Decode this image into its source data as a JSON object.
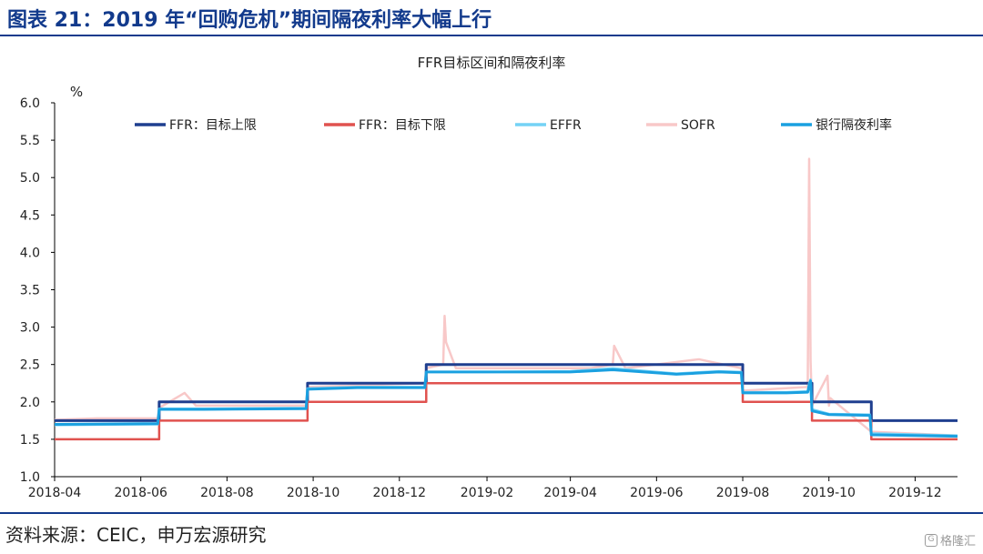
{
  "figure": {
    "title": "图表 21：2019 年“回购危机”期间隔夜利率大幅上行",
    "source": "资料来源：CEIC，申万宏源研究",
    "watermark": "格隆汇",
    "watermark_icon": "g-logo-icon"
  },
  "chart_data": {
    "type": "line",
    "title": "FFR目标区间和隔夜利率",
    "ylabel": "%",
    "ylim": [
      1.0,
      6.0
    ],
    "yticks": [
      "1.0",
      "1.5",
      "2.0",
      "2.5",
      "3.0",
      "3.5",
      "4.0",
      "4.5",
      "5.0",
      "5.5",
      "6.0"
    ],
    "xlim": [
      "2018-04-01",
      "2019-12-31"
    ],
    "xticks": [
      "2018-04",
      "2018-06",
      "2018-08",
      "2018-10",
      "2018-12",
      "2019-02",
      "2019-04",
      "2019-06",
      "2019-08",
      "2019-10",
      "2019-12"
    ],
    "grid": false,
    "legend_position": "top",
    "series": [
      {
        "name": "FFR：目标上限",
        "color": "#1f3f8f",
        "style": "step",
        "x": [
          "2018-04-01",
          "2018-06-14",
          "2018-09-27",
          "2018-12-20",
          "2019-08-01",
          "2019-09-19",
          "2019-10-31",
          "2019-12-31"
        ],
        "values": [
          1.75,
          2.0,
          2.25,
          2.5,
          2.25,
          2.0,
          1.75,
          1.75
        ]
      },
      {
        "name": "FFR：目标下限",
        "color": "#e0524f",
        "style": "step",
        "x": [
          "2018-04-01",
          "2018-06-14",
          "2018-09-27",
          "2018-12-20",
          "2019-08-01",
          "2019-09-19",
          "2019-10-31",
          "2019-12-31"
        ],
        "values": [
          1.5,
          1.75,
          2.0,
          2.25,
          2.0,
          1.75,
          1.5,
          1.5
        ]
      },
      {
        "name": "EFFR",
        "color": "#74d2f5",
        "style": "line",
        "x": [
          "2018-04-01",
          "2018-06-13",
          "2018-06-14",
          "2018-07-15",
          "2018-09-26",
          "2018-09-27",
          "2018-11-01",
          "2018-12-19",
          "2018-12-20",
          "2019-02-01",
          "2019-04-01",
          "2019-05-01",
          "2019-06-15",
          "2019-07-15",
          "2019-07-31",
          "2019-08-01",
          "2019-09-01",
          "2019-09-16",
          "2019-09-17",
          "2019-09-18",
          "2019-09-19",
          "2019-10-01",
          "2019-10-30",
          "2019-10-31",
          "2019-12-31"
        ],
        "values": [
          1.69,
          1.7,
          1.91,
          1.91,
          1.92,
          2.18,
          2.2,
          2.2,
          2.4,
          2.4,
          2.41,
          2.45,
          2.38,
          2.41,
          2.4,
          2.13,
          2.13,
          2.14,
          2.25,
          2.3,
          1.9,
          1.84,
          1.83,
          1.58,
          1.55
        ]
      },
      {
        "name": "SOFR",
        "color": "#f8c8c8",
        "style": "line",
        "x": [
          "2018-04-01",
          "2018-05-01",
          "2018-06-13",
          "2018-06-14",
          "2018-07-02",
          "2018-07-10",
          "2018-09-26",
          "2018-09-27",
          "2018-12-19",
          "2018-12-20",
          "2019-01-01",
          "2019-01-02",
          "2019-01-03",
          "2019-01-10",
          "2019-04-15",
          "2019-05-01",
          "2019-05-02",
          "2019-05-10",
          "2019-07-01",
          "2019-07-31",
          "2019-08-01",
          "2019-09-16",
          "2019-09-17",
          "2019-09-18",
          "2019-09-19",
          "2019-09-30",
          "2019-10-01",
          "2019-10-02",
          "2019-10-31",
          "2019-12-31"
        ],
        "values": [
          1.76,
          1.78,
          1.78,
          1.92,
          2.12,
          1.95,
          1.95,
          2.2,
          2.25,
          2.45,
          2.5,
          3.15,
          2.8,
          2.45,
          2.45,
          2.5,
          2.75,
          2.45,
          2.57,
          2.45,
          2.15,
          2.2,
          5.25,
          2.55,
          1.95,
          2.35,
          1.95,
          2.05,
          1.6,
          1.55
        ]
      },
      {
        "name": "银行隔夜利率",
        "color": "#1aa0e0",
        "style": "line",
        "x": [
          "2018-04-01",
          "2018-06-13",
          "2018-06-14",
          "2018-07-15",
          "2018-09-26",
          "2018-09-27",
          "2018-11-01",
          "2018-12-19",
          "2018-12-20",
          "2019-02-01",
          "2019-04-01",
          "2019-05-01",
          "2019-06-15",
          "2019-07-15",
          "2019-07-31",
          "2019-08-01",
          "2019-09-01",
          "2019-09-16",
          "2019-09-17",
          "2019-09-18",
          "2019-09-19",
          "2019-10-01",
          "2019-10-30",
          "2019-10-31",
          "2019-12-31"
        ],
        "values": [
          1.7,
          1.71,
          1.9,
          1.9,
          1.91,
          2.17,
          2.19,
          2.19,
          2.4,
          2.4,
          2.4,
          2.43,
          2.37,
          2.4,
          2.39,
          2.12,
          2.12,
          2.13,
          2.22,
          2.28,
          1.88,
          1.83,
          1.82,
          1.56,
          1.54
        ]
      }
    ]
  }
}
